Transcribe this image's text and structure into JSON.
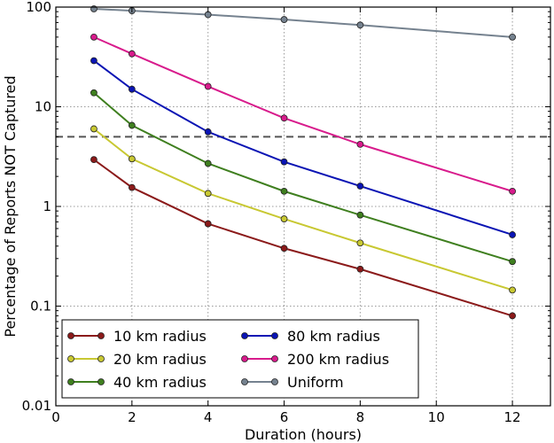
{
  "chart_data": {
    "type": "line",
    "title": "",
    "xlabel": "Duration (hours)",
    "ylabel": "Percentage of Reports NOT Captured",
    "xlim": [
      0,
      13
    ],
    "ylim": [
      0.01,
      100
    ],
    "yscale": "log",
    "x_ticks": [
      0,
      2,
      4,
      6,
      8,
      10,
      12
    ],
    "x_tick_labels": [
      "0",
      "2",
      "4",
      "6",
      "8",
      "10",
      "12"
    ],
    "y_ticks": [
      0.01,
      0.1,
      1,
      10,
      100
    ],
    "y_tick_labels": [
      "0.01",
      "0.1",
      "1",
      "10",
      "100"
    ],
    "grid": true,
    "legend_position": "bottom-left",
    "reference_line": {
      "y": 5,
      "style": "dashed",
      "color": "#555555"
    },
    "x": [
      1,
      2,
      4,
      6,
      8,
      12
    ],
    "series": [
      {
        "name": "10 km radius",
        "color": "#8b1a1a",
        "values": [
          2.95,
          1.55,
          0.67,
          0.38,
          0.235,
          0.08
        ]
      },
      {
        "name": "20 km radius",
        "color": "#c8c832",
        "values": [
          6.0,
          3.0,
          1.35,
          0.75,
          0.43,
          0.145
        ]
      },
      {
        "name": "40 km radius",
        "color": "#3f7f1f",
        "values": [
          13.8,
          6.5,
          2.7,
          1.42,
          0.82,
          0.28
        ]
      },
      {
        "name": "80 km radius",
        "color": "#0a14b4",
        "values": [
          29.0,
          15.0,
          5.6,
          2.8,
          1.6,
          0.52
        ]
      },
      {
        "name": "200 km radius",
        "color": "#d81b8c",
        "values": [
          50.0,
          34.0,
          16.0,
          7.7,
          4.2,
          1.42
        ]
      },
      {
        "name": "Uniform",
        "color": "#75828f",
        "values": [
          96.0,
          92.0,
          84.0,
          75.0,
          66.0,
          50.0
        ]
      }
    ]
  }
}
